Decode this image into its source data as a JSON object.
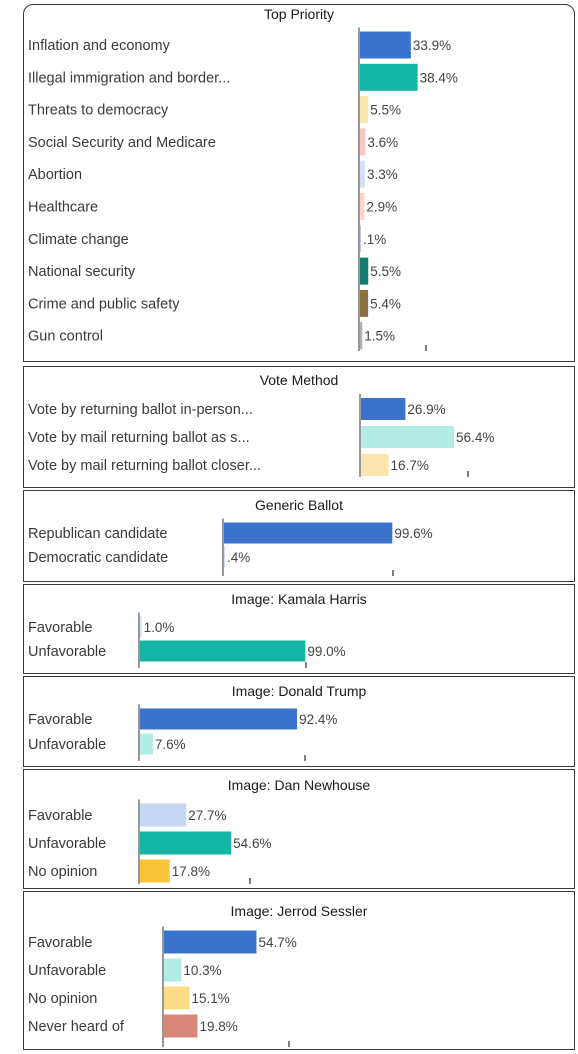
{
  "chart_data": [
    {
      "type": "bar",
      "title": "Top Priority",
      "categories": [
        "Inflation and economy",
        "Illegal immigration and border...",
        "Threats to democracy",
        "Social Security and Medicare",
        "Abortion",
        "Healthcare",
        "Climate change",
        "National security",
        "Crime and public safety",
        "Gun control"
      ],
      "values": [
        33.9,
        38.4,
        5.5,
        3.6,
        3.3,
        2.9,
        0.1,
        5.5,
        5.4,
        1.5
      ],
      "value_labels": [
        "33.9%",
        "38.4%",
        "5.5%",
        "3.6%",
        "3.3%",
        "2.9%",
        ".1%",
        "5.5%",
        "5.4%",
        "1.5%"
      ],
      "colors": [
        "#3b73cc",
        "#14b5a5",
        "#fce6ad",
        "#f8c7c4",
        "#d3dff3",
        "#fbd3c8",
        "#c0c8d8",
        "#137c70",
        "#8b7040",
        "#b0b0b0"
      ]
    },
    {
      "type": "bar",
      "title": "Vote Method",
      "categories": [
        "Vote by returning ballot in-person...",
        "Vote by mail returning ballot as s...",
        "Vote by mail returning ballot closer..."
      ],
      "values": [
        26.9,
        56.4,
        16.7
      ],
      "value_labels": [
        "26.9%",
        "56.4%",
        "16.7%"
      ],
      "colors": [
        "#3b73cc",
        "#b3ebe5",
        "#fce6ad"
      ]
    },
    {
      "type": "bar",
      "title": "Generic Ballot",
      "categories": [
        "Republican candidate",
        "Democratic candidate"
      ],
      "values": [
        99.6,
        0.4
      ],
      "value_labels": [
        "99.6%",
        ".4%"
      ],
      "colors": [
        "#3b73cc",
        "#d3dff3"
      ]
    },
    {
      "type": "bar",
      "title": "Image: Kamala Harris",
      "categories": [
        "Favorable",
        "Unfavorable"
      ],
      "values": [
        1.0,
        99.0
      ],
      "value_labels": [
        "1.0%",
        "99.0%"
      ],
      "colors": [
        "#d3dff3",
        "#14b5a5"
      ]
    },
    {
      "type": "bar",
      "title": "Image: Donald Trump",
      "categories": [
        "Favorable",
        "Unfavorable"
      ],
      "values": [
        92.4,
        7.6
      ],
      "value_labels": [
        "92.4%",
        "7.6%"
      ],
      "colors": [
        "#3b73cc",
        "#b3ebe5"
      ]
    },
    {
      "type": "bar",
      "title": "Image: Dan Newhouse",
      "categories": [
        "Favorable",
        "Unfavorable",
        "No opinion"
      ],
      "values": [
        27.7,
        54.6,
        17.8
      ],
      "value_labels": [
        "27.7%",
        "54.6%",
        "17.8%"
      ],
      "colors": [
        "#c5d7f2",
        "#14b5a5",
        "#f8c43a"
      ]
    },
    {
      "type": "bar",
      "title": "Image: Jerrod Sessler",
      "categories": [
        "Favorable",
        "Unfavorable",
        "No opinion",
        "Never heard of"
      ],
      "values": [
        54.7,
        10.3,
        15.1,
        19.8
      ],
      "value_labels": [
        "54.7%",
        "10.3%",
        "15.1%",
        "19.8%"
      ],
      "colors": [
        "#3b73cc",
        "#b3ebe5",
        "#fcdc85",
        "#d9877b"
      ]
    }
  ]
}
